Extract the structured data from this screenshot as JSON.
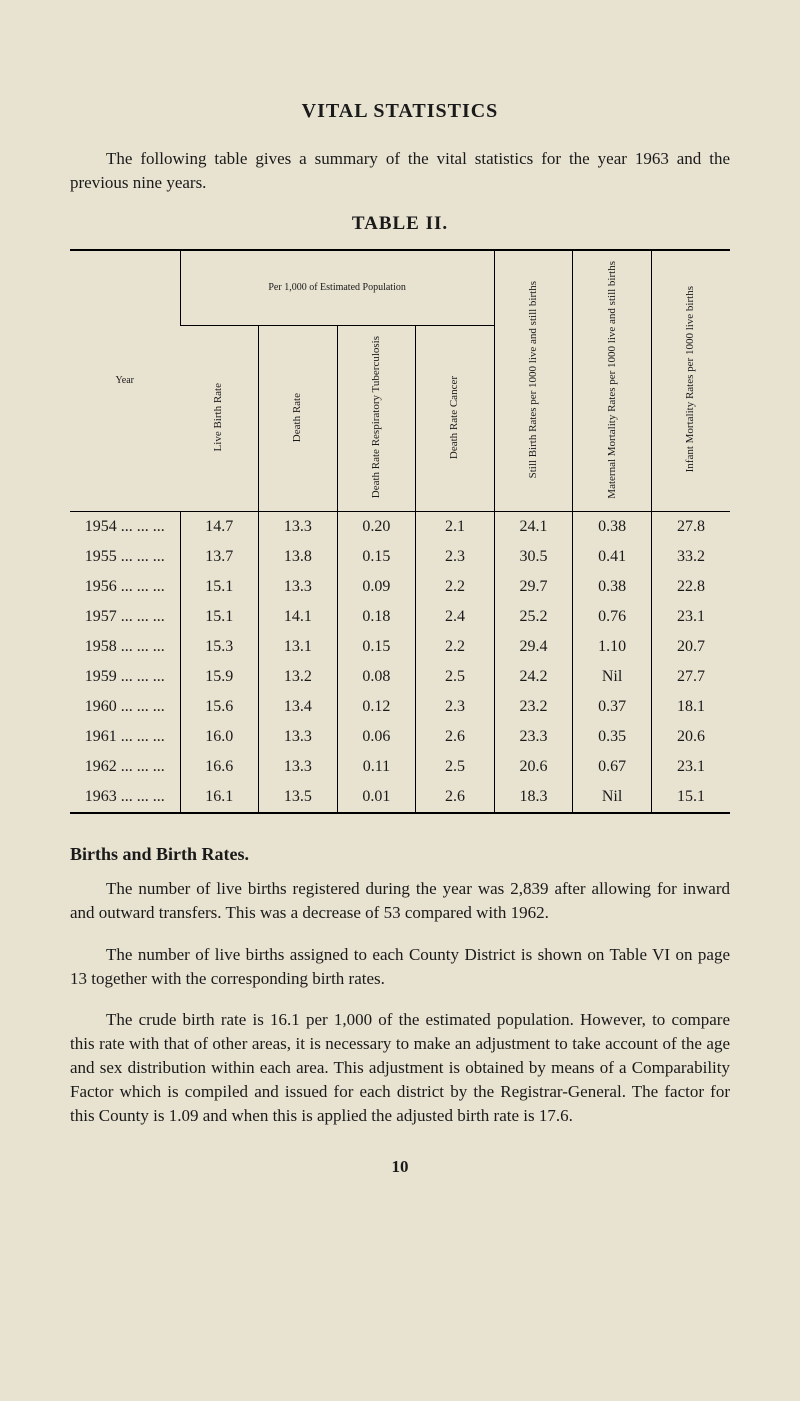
{
  "title": "VITAL STATISTICS",
  "intro": "The following table gives a summary of the vital statistics for the year 1963 and the previous nine years.",
  "table_title": "TABLE II.",
  "group_header": "Per 1,000 of Estimated Population",
  "columns": {
    "year": "Year",
    "live_birth": "Live Birth\nRate",
    "death_rate": "Death Rate",
    "death_resp": "Death Rate\nRespiratory\nTuberculosis",
    "death_cancer": "Death Rate\nCancer",
    "still_birth": "Still Birth\nRates per 1000\nlive and still\nbirths",
    "maternal": "Maternal\nMortality\nRates per 1000\nlive and still\nbirths",
    "infant": "Infant\nMortality\nRates per 1000\nlive births"
  },
  "rows": [
    {
      "year": "1954 ... ... ...",
      "c1": "14.7",
      "c2": "13.3",
      "c3": "0.20",
      "c4": "2.1",
      "c5": "24.1",
      "c6": "0.38",
      "c7": "27.8"
    },
    {
      "year": "1955 ... ... ...",
      "c1": "13.7",
      "c2": "13.8",
      "c3": "0.15",
      "c4": "2.3",
      "c5": "30.5",
      "c6": "0.41",
      "c7": "33.2"
    },
    {
      "year": "1956 ... ... ...",
      "c1": "15.1",
      "c2": "13.3",
      "c3": "0.09",
      "c4": "2.2",
      "c5": "29.7",
      "c6": "0.38",
      "c7": "22.8"
    },
    {
      "year": "1957 ... ... ...",
      "c1": "15.1",
      "c2": "14.1",
      "c3": "0.18",
      "c4": "2.4",
      "c5": "25.2",
      "c6": "0.76",
      "c7": "23.1"
    },
    {
      "year": "1958 ... ... ...",
      "c1": "15.3",
      "c2": "13.1",
      "c3": "0.15",
      "c4": "2.2",
      "c5": "29.4",
      "c6": "1.10",
      "c7": "20.7"
    },
    {
      "year": "1959 ... ... ...",
      "c1": "15.9",
      "c2": "13.2",
      "c3": "0.08",
      "c4": "2.5",
      "c5": "24.2",
      "c6": "Nil",
      "c7": "27.7"
    },
    {
      "year": "1960 ... ... ...",
      "c1": "15.6",
      "c2": "13.4",
      "c3": "0.12",
      "c4": "2.3",
      "c5": "23.2",
      "c6": "0.37",
      "c7": "18.1"
    },
    {
      "year": "1961 ... ... ...",
      "c1": "16.0",
      "c2": "13.3",
      "c3": "0.06",
      "c4": "2.6",
      "c5": "23.3",
      "c6": "0.35",
      "c7": "20.6"
    },
    {
      "year": "1962 ... ... ...",
      "c1": "16.6",
      "c2": "13.3",
      "c3": "0.11",
      "c4": "2.5",
      "c5": "20.6",
      "c6": "0.67",
      "c7": "23.1"
    },
    {
      "year": "1963 ... ... ...",
      "c1": "16.1",
      "c2": "13.5",
      "c3": "0.01",
      "c4": "2.6",
      "c5": "18.3",
      "c6": "Nil",
      "c7": "15.1"
    }
  ],
  "section_heading": "Births and Birth Rates.",
  "para1": "The number of live births registered during the year was 2,839 after allowing for inward and outward transfers. This was a decrease of 53 compared with 1962.",
  "para2": "The number of live births assigned to each County District is shown on Table VI on page 13 together with the corresponding birth rates.",
  "para3": "The crude birth rate is 16.1 per 1,000 of the estimated population. However, to compare this rate with that of other areas, it is necessary to make an adjustment to take account of the age and sex distribution within each area. This adjustment is obtained by means of a Comparability Factor which is compiled and issued for each district by the Registrar-General. The factor for this County is 1.09 and when this is applied the adjusted birth rate is 17.6.",
  "page_number": "10",
  "style": {
    "background": "#e8e2d0",
    "text_color": "#1a1a1a",
    "font_family": "Georgia, 'Times New Roman', serif",
    "title_fontsize": 20,
    "body_fontsize": 17,
    "table_body_fontsize": 16,
    "table_header_fontsize": 11
  }
}
